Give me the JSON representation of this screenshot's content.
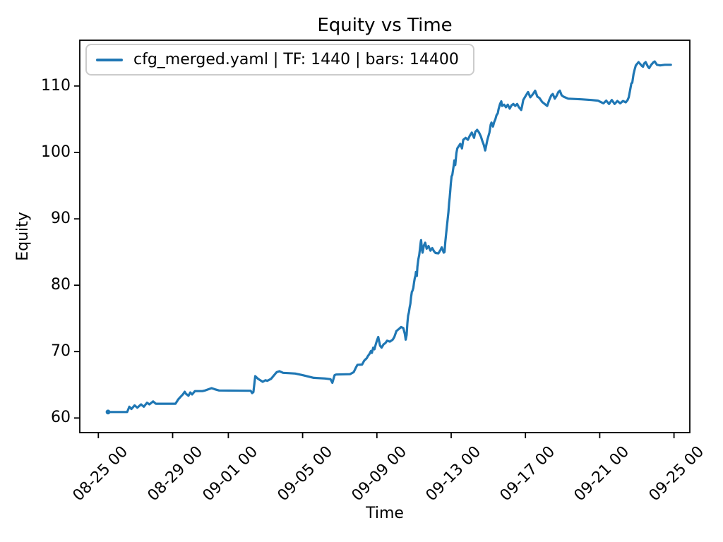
{
  "figure": {
    "background": "#ffffff"
  },
  "chart_data": {
    "type": "line",
    "title": "Equity vs Time",
    "xlabel": "Time",
    "ylabel": "Equity",
    "grid": false,
    "legend_position": "upper-left",
    "x_unit": "days after first tick (08-25 00)",
    "xlim": [
      -1.0,
      31.85
    ],
    "ylim": [
      57.8,
      116.9
    ],
    "x_ticks": [
      {
        "pos": 0,
        "label": "08-25 00"
      },
      {
        "pos": 4,
        "label": "08-29 00"
      },
      {
        "pos": 7,
        "label": "09-01 00"
      },
      {
        "pos": 11,
        "label": "09-05 00"
      },
      {
        "pos": 15,
        "label": "09-09 00"
      },
      {
        "pos": 19,
        "label": "09-13 00"
      },
      {
        "pos": 23,
        "label": "09-17 00"
      },
      {
        "pos": 27,
        "label": "09-21 00"
      },
      {
        "pos": 31,
        "label": "09-25 00"
      }
    ],
    "y_ticks": [
      {
        "pos": 60,
        "label": "60"
      },
      {
        "pos": 70,
        "label": "70"
      },
      {
        "pos": 80,
        "label": "80"
      },
      {
        "pos": 90,
        "label": "90"
      },
      {
        "pos": 100,
        "label": "100"
      },
      {
        "pos": 110,
        "label": "110"
      }
    ],
    "series": [
      {
        "name": "cfg_merged.yaml | TF: 1440 | bars: 14400",
        "color": "#1f77b4",
        "points": [
          [
            0.52,
            60.9
          ],
          [
            1.55,
            60.9
          ],
          [
            1.67,
            61.7
          ],
          [
            1.78,
            61.35
          ],
          [
            1.95,
            61.9
          ],
          [
            2.1,
            61.55
          ],
          [
            2.3,
            62.05
          ],
          [
            2.45,
            61.7
          ],
          [
            2.62,
            62.3
          ],
          [
            2.75,
            62.05
          ],
          [
            2.95,
            62.5
          ],
          [
            3.1,
            62.15
          ],
          [
            4.15,
            62.15
          ],
          [
            4.3,
            62.8
          ],
          [
            4.45,
            63.25
          ],
          [
            4.55,
            63.55
          ],
          [
            4.65,
            63.95
          ],
          [
            4.72,
            63.65
          ],
          [
            4.85,
            63.35
          ],
          [
            4.95,
            63.85
          ],
          [
            5.05,
            63.55
          ],
          [
            5.2,
            64.05
          ],
          [
            5.6,
            64.05
          ],
          [
            5.75,
            64.15
          ],
          [
            6.1,
            64.5
          ],
          [
            6.25,
            64.35
          ],
          [
            6.5,
            64.15
          ],
          [
            8.2,
            64.1
          ],
          [
            8.28,
            63.75
          ],
          [
            8.35,
            63.9
          ],
          [
            8.45,
            66.3
          ],
          [
            8.6,
            65.9
          ],
          [
            8.85,
            65.45
          ],
          [
            9.0,
            65.7
          ],
          [
            9.1,
            65.6
          ],
          [
            9.3,
            65.9
          ],
          [
            9.45,
            66.4
          ],
          [
            9.6,
            66.9
          ],
          [
            9.75,
            67.05
          ],
          [
            9.95,
            66.8
          ],
          [
            10.3,
            66.75
          ],
          [
            10.6,
            66.7
          ],
          [
            11.0,
            66.45
          ],
          [
            11.6,
            66.05
          ],
          [
            12.2,
            65.95
          ],
          [
            12.5,
            65.85
          ],
          [
            12.6,
            65.3
          ],
          [
            12.72,
            66.45
          ],
          [
            12.8,
            66.55
          ],
          [
            13.55,
            66.6
          ],
          [
            13.75,
            66.9
          ],
          [
            13.87,
            67.6
          ],
          [
            13.95,
            68.0
          ],
          [
            14.2,
            68.05
          ],
          [
            14.32,
            68.65
          ],
          [
            14.45,
            69.0
          ],
          [
            14.52,
            69.35
          ],
          [
            14.6,
            69.65
          ],
          [
            14.68,
            70.1
          ],
          [
            14.73,
            69.8
          ],
          [
            14.8,
            70.6
          ],
          [
            14.87,
            70.35
          ],
          [
            14.94,
            71.1
          ],
          [
            15.0,
            71.65
          ],
          [
            15.07,
            72.2
          ],
          [
            15.17,
            70.9
          ],
          [
            15.25,
            70.6
          ],
          [
            15.36,
            71.1
          ],
          [
            15.46,
            71.3
          ],
          [
            15.55,
            71.65
          ],
          [
            15.7,
            71.5
          ],
          [
            15.85,
            71.8
          ],
          [
            15.94,
            72.2
          ],
          [
            16.05,
            73.1
          ],
          [
            16.2,
            73.45
          ],
          [
            16.3,
            73.7
          ],
          [
            16.42,
            73.55
          ],
          [
            16.5,
            72.7
          ],
          [
            16.55,
            71.8
          ],
          [
            16.6,
            72.5
          ],
          [
            16.64,
            74.3
          ],
          [
            16.68,
            75.4
          ],
          [
            16.72,
            75.9
          ],
          [
            16.76,
            76.6
          ],
          [
            16.8,
            77.2
          ],
          [
            16.84,
            78.2
          ],
          [
            16.88,
            79.0
          ],
          [
            16.92,
            79.2
          ],
          [
            16.96,
            79.6
          ],
          [
            17.0,
            80.4
          ],
          [
            17.04,
            81.1
          ],
          [
            17.08,
            81.45
          ],
          [
            17.1,
            82.0
          ],
          [
            17.15,
            81.4
          ],
          [
            17.18,
            82.8
          ],
          [
            17.23,
            83.9
          ],
          [
            17.28,
            84.6
          ],
          [
            17.31,
            85.3
          ],
          [
            17.36,
            86.5
          ],
          [
            17.38,
            86.8
          ],
          [
            17.43,
            85.3
          ],
          [
            17.46,
            84.9
          ],
          [
            17.53,
            86.0
          ],
          [
            17.6,
            86.4
          ],
          [
            17.68,
            85.5
          ],
          [
            17.78,
            85.9
          ],
          [
            17.88,
            85.2
          ],
          [
            17.98,
            85.6
          ],
          [
            18.08,
            85.1
          ],
          [
            18.16,
            84.85
          ],
          [
            18.31,
            84.8
          ],
          [
            18.42,
            85.3
          ],
          [
            18.49,
            85.7
          ],
          [
            18.6,
            84.9
          ],
          [
            18.64,
            85.0
          ],
          [
            18.68,
            86.4
          ],
          [
            18.73,
            87.8
          ],
          [
            18.77,
            88.9
          ],
          [
            18.81,
            89.9
          ],
          [
            18.85,
            91.0
          ],
          [
            18.89,
            92.4
          ],
          [
            18.92,
            93.2
          ],
          [
            18.95,
            94.2
          ],
          [
            18.98,
            95.3
          ],
          [
            19.02,
            96.4
          ],
          [
            19.06,
            96.6
          ],
          [
            19.1,
            97.4
          ],
          [
            19.14,
            98.1
          ],
          [
            19.17,
            98.8
          ],
          [
            19.22,
            98.1
          ],
          [
            19.28,
            99.9
          ],
          [
            19.33,
            100.6
          ],
          [
            19.42,
            101.0
          ],
          [
            19.49,
            101.3
          ],
          [
            19.58,
            100.6
          ],
          [
            19.65,
            101.9
          ],
          [
            19.78,
            102.2
          ],
          [
            19.9,
            101.9
          ],
          [
            20.0,
            102.5
          ],
          [
            20.11,
            103.0
          ],
          [
            20.23,
            102.2
          ],
          [
            20.3,
            103.1
          ],
          [
            20.4,
            103.4
          ],
          [
            20.5,
            103.0
          ],
          [
            20.6,
            102.4
          ],
          [
            20.68,
            101.7
          ],
          [
            20.76,
            101.1
          ],
          [
            20.83,
            100.3
          ],
          [
            20.95,
            101.9
          ],
          [
            21.0,
            102.4
          ],
          [
            21.06,
            103.0
          ],
          [
            21.13,
            104.2
          ],
          [
            21.17,
            104.5
          ],
          [
            21.25,
            103.9
          ],
          [
            21.32,
            104.6
          ],
          [
            21.38,
            105.0
          ],
          [
            21.44,
            105.6
          ],
          [
            21.51,
            105.9
          ],
          [
            21.55,
            106.5
          ],
          [
            21.63,
            107.3
          ],
          [
            21.7,
            107.7
          ],
          [
            21.74,
            107.0
          ],
          [
            21.85,
            107.2
          ],
          [
            21.95,
            106.8
          ],
          [
            22.05,
            107.2
          ],
          [
            22.15,
            106.6
          ],
          [
            22.25,
            107.1
          ],
          [
            22.35,
            107.3
          ],
          [
            22.45,
            107.0
          ],
          [
            22.55,
            107.3
          ],
          [
            22.65,
            106.8
          ],
          [
            22.77,
            106.4
          ],
          [
            22.82,
            107.0
          ],
          [
            22.88,
            107.9
          ],
          [
            23.03,
            108.6
          ],
          [
            23.14,
            109.1
          ],
          [
            23.26,
            108.3
          ],
          [
            23.41,
            108.8
          ],
          [
            23.52,
            109.3
          ],
          [
            23.64,
            108.4
          ],
          [
            23.75,
            108.2
          ],
          [
            23.9,
            107.6
          ],
          [
            24.17,
            107.0
          ],
          [
            24.28,
            107.9
          ],
          [
            24.39,
            108.6
          ],
          [
            24.47,
            108.8
          ],
          [
            24.58,
            108.1
          ],
          [
            24.67,
            108.5
          ],
          [
            24.77,
            109.1
          ],
          [
            24.85,
            109.3
          ],
          [
            24.95,
            108.6
          ],
          [
            25.05,
            108.4
          ],
          [
            25.3,
            108.1
          ],
          [
            26.0,
            108.0
          ],
          [
            26.55,
            107.9
          ],
          [
            26.9,
            107.8
          ],
          [
            27.2,
            107.4
          ],
          [
            27.35,
            107.8
          ],
          [
            27.5,
            107.3
          ],
          [
            27.65,
            107.9
          ],
          [
            27.8,
            107.3
          ],
          [
            27.95,
            107.75
          ],
          [
            28.1,
            107.4
          ],
          [
            28.25,
            107.75
          ],
          [
            28.4,
            107.55
          ],
          [
            28.5,
            107.9
          ],
          [
            28.56,
            108.3
          ],
          [
            28.63,
            109.3
          ],
          [
            28.7,
            110.4
          ],
          [
            28.75,
            110.5
          ],
          [
            28.82,
            111.8
          ],
          [
            28.88,
            112.5
          ],
          [
            28.94,
            113.1
          ],
          [
            29.09,
            113.6
          ],
          [
            29.28,
            113.0
          ],
          [
            29.33,
            112.9
          ],
          [
            29.39,
            113.4
          ],
          [
            29.47,
            113.6
          ],
          [
            29.6,
            112.9
          ],
          [
            29.66,
            112.7
          ],
          [
            29.77,
            113.2
          ],
          [
            29.9,
            113.6
          ],
          [
            29.96,
            113.7
          ],
          [
            30.08,
            113.2
          ],
          [
            30.25,
            113.1
          ],
          [
            30.5,
            113.2
          ],
          [
            30.83,
            113.2
          ]
        ]
      }
    ]
  }
}
